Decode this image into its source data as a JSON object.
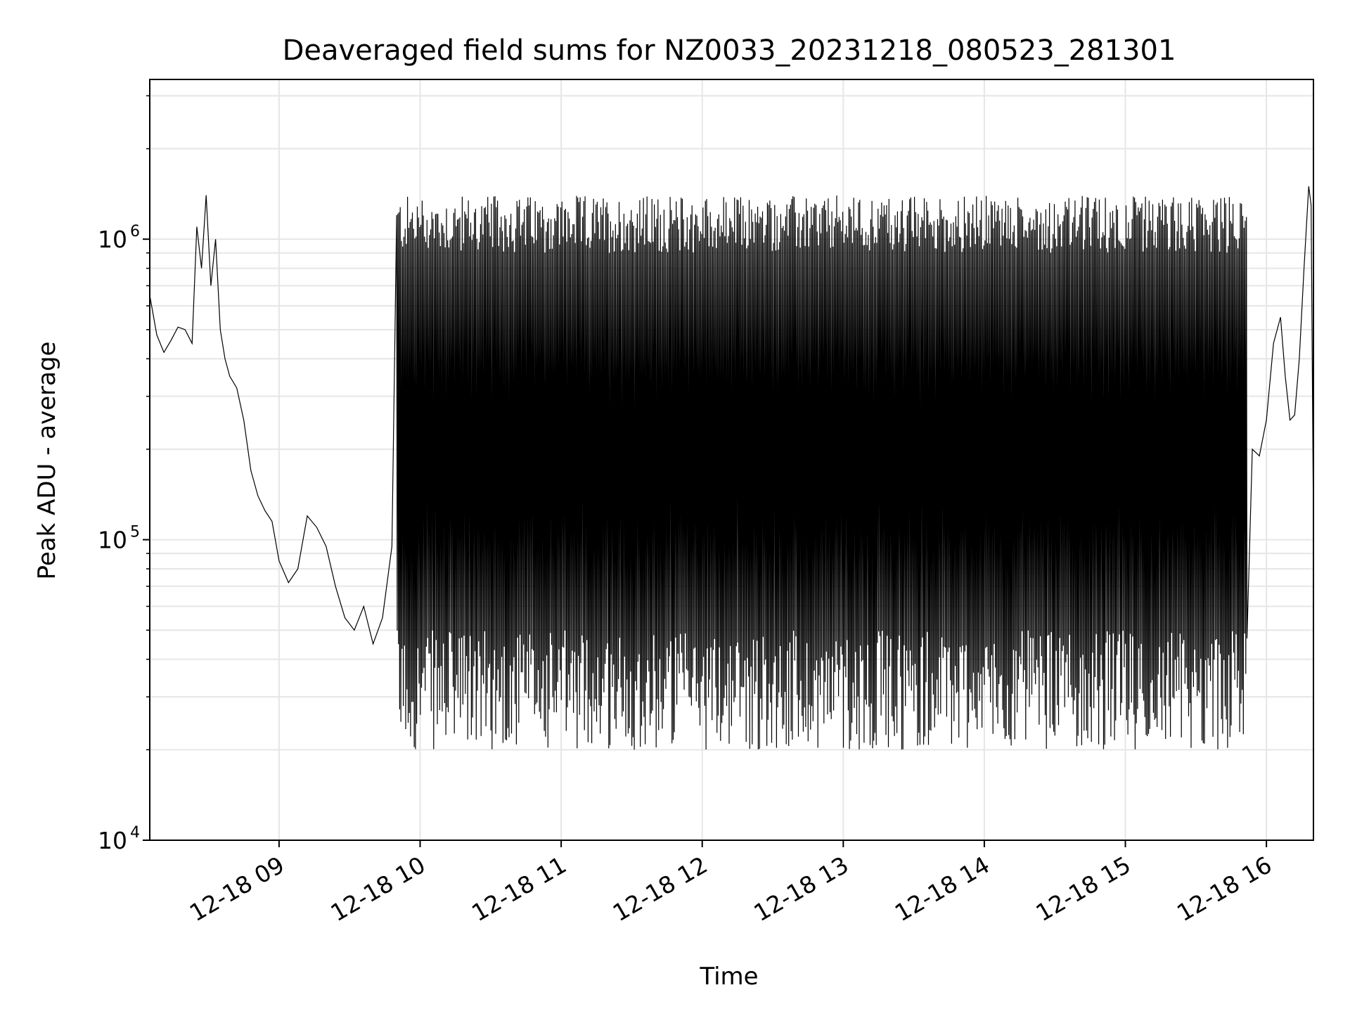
{
  "chart_data": {
    "type": "line",
    "title": "Deaveraged field sums for NZ0033_20231218_080523_281301",
    "xlabel": "Time",
    "ylabel": "Peak ADU - average",
    "y_scale": "log",
    "ylim": [
      10000,
      3400000
    ],
    "xlim": [
      "2023-12-18 08:05",
      "2023-12-18 16:20"
    ],
    "grid": true,
    "line_color": "#000000",
    "grid_color": "#e6e6e6",
    "x_ticks": [
      {
        "value": "2023-12-18 09:00",
        "label": "12-18 09"
      },
      {
        "value": "2023-12-18 10:00",
        "label": "12-18 10"
      },
      {
        "value": "2023-12-18 11:00",
        "label": "12-18 11"
      },
      {
        "value": "2023-12-18 12:00",
        "label": "12-18 12"
      },
      {
        "value": "2023-12-18 13:00",
        "label": "12-18 13"
      },
      {
        "value": "2023-12-18 14:00",
        "label": "12-18 14"
      },
      {
        "value": "2023-12-18 15:00",
        "label": "12-18 15"
      },
      {
        "value": "2023-12-18 16:00",
        "label": "12-18 16"
      }
    ],
    "y_ticks": [
      {
        "value": 10000,
        "base": "10",
        "exp": "4"
      },
      {
        "value": 100000,
        "base": "10",
        "exp": "5"
      },
      {
        "value": 1000000,
        "base": "10",
        "exp": "6"
      }
    ],
    "series": [
      {
        "values_description_free": true,
        "points": [
          [
            "2023-12-18 08:05",
            650000
          ],
          [
            "2023-12-18 08:08",
            480000
          ],
          [
            "2023-12-18 08:11",
            420000
          ],
          [
            "2023-12-18 08:14",
            460000
          ],
          [
            "2023-12-18 08:17",
            510000
          ],
          [
            "2023-12-18 08:20",
            500000
          ],
          [
            "2023-12-18 08:23",
            450000
          ],
          [
            "2023-12-18 08:25",
            1100000
          ],
          [
            "2023-12-18 08:27",
            800000
          ],
          [
            "2023-12-18 08:29",
            1400000
          ],
          [
            "2023-12-18 08:31",
            700000
          ],
          [
            "2023-12-18 08:33",
            1000000
          ],
          [
            "2023-12-18 08:35",
            500000
          ],
          [
            "2023-12-18 08:37",
            400000
          ],
          [
            "2023-12-18 08:39",
            350000
          ],
          [
            "2023-12-18 08:42",
            320000
          ],
          [
            "2023-12-18 08:45",
            250000
          ],
          [
            "2023-12-18 08:48",
            170000
          ],
          [
            "2023-12-18 08:51",
            140000
          ],
          [
            "2023-12-18 08:54",
            125000
          ],
          [
            "2023-12-18 08:57",
            115000
          ],
          [
            "2023-12-18 09:00",
            85000
          ],
          [
            "2023-12-18 09:04",
            72000
          ],
          [
            "2023-12-18 09:08",
            80000
          ],
          [
            "2023-12-18 09:12",
            120000
          ],
          [
            "2023-12-18 09:16",
            110000
          ],
          [
            "2023-12-18 09:20",
            95000
          ],
          [
            "2023-12-18 09:24",
            70000
          ],
          [
            "2023-12-18 09:28",
            55000
          ],
          [
            "2023-12-18 09:32",
            50000
          ],
          [
            "2023-12-18 09:36",
            60000
          ],
          [
            "2023-12-18 09:40",
            45000
          ],
          [
            "2023-12-18 09:44",
            55000
          ],
          [
            "2023-12-18 09:48",
            95000
          ],
          [
            "2023-12-18 09:52",
            70000
          ],
          [
            "2023-12-18 09:56",
            60000
          ],
          [
            "2023-12-18 10:00",
            55000
          ],
          [
            "2023-12-18 10:05",
            55000
          ],
          [
            "2023-12-18 10:10",
            50000
          ],
          [
            "2023-12-18 10:15",
            45000
          ],
          [
            "2023-12-18 10:20",
            40000
          ],
          [
            "2023-12-18 10:25",
            40000
          ],
          [
            "2023-12-18 15:40",
            38000
          ],
          [
            "2023-12-18 15:45",
            45000
          ],
          [
            "2023-12-18 15:50",
            80000
          ],
          [
            "2023-12-18 15:54",
            200000
          ],
          [
            "2023-12-18 15:57",
            190000
          ],
          [
            "2023-12-18 16:00",
            250000
          ],
          [
            "2023-12-18 16:03",
            450000
          ],
          [
            "2023-12-18 16:06",
            550000
          ],
          [
            "2023-12-18 16:08",
            350000
          ],
          [
            "2023-12-18 16:10",
            250000
          ],
          [
            "2023-12-18 16:12",
            260000
          ],
          [
            "2023-12-18 16:14",
            400000
          ],
          [
            "2023-12-18 16:16",
            800000
          ],
          [
            "2023-12-18 16:18",
            1500000
          ],
          [
            "2023-12-18 16:19",
            1300000
          ],
          [
            "2023-12-18 16:20",
            110000
          ]
        ],
        "oscillation": {
          "from": "2023-12-18 09:50",
          "to": "2023-12-18 15:52",
          "peak_range": [
            900000,
            1400000
          ],
          "trough_range": [
            20000,
            50000
          ]
        }
      }
    ]
  }
}
